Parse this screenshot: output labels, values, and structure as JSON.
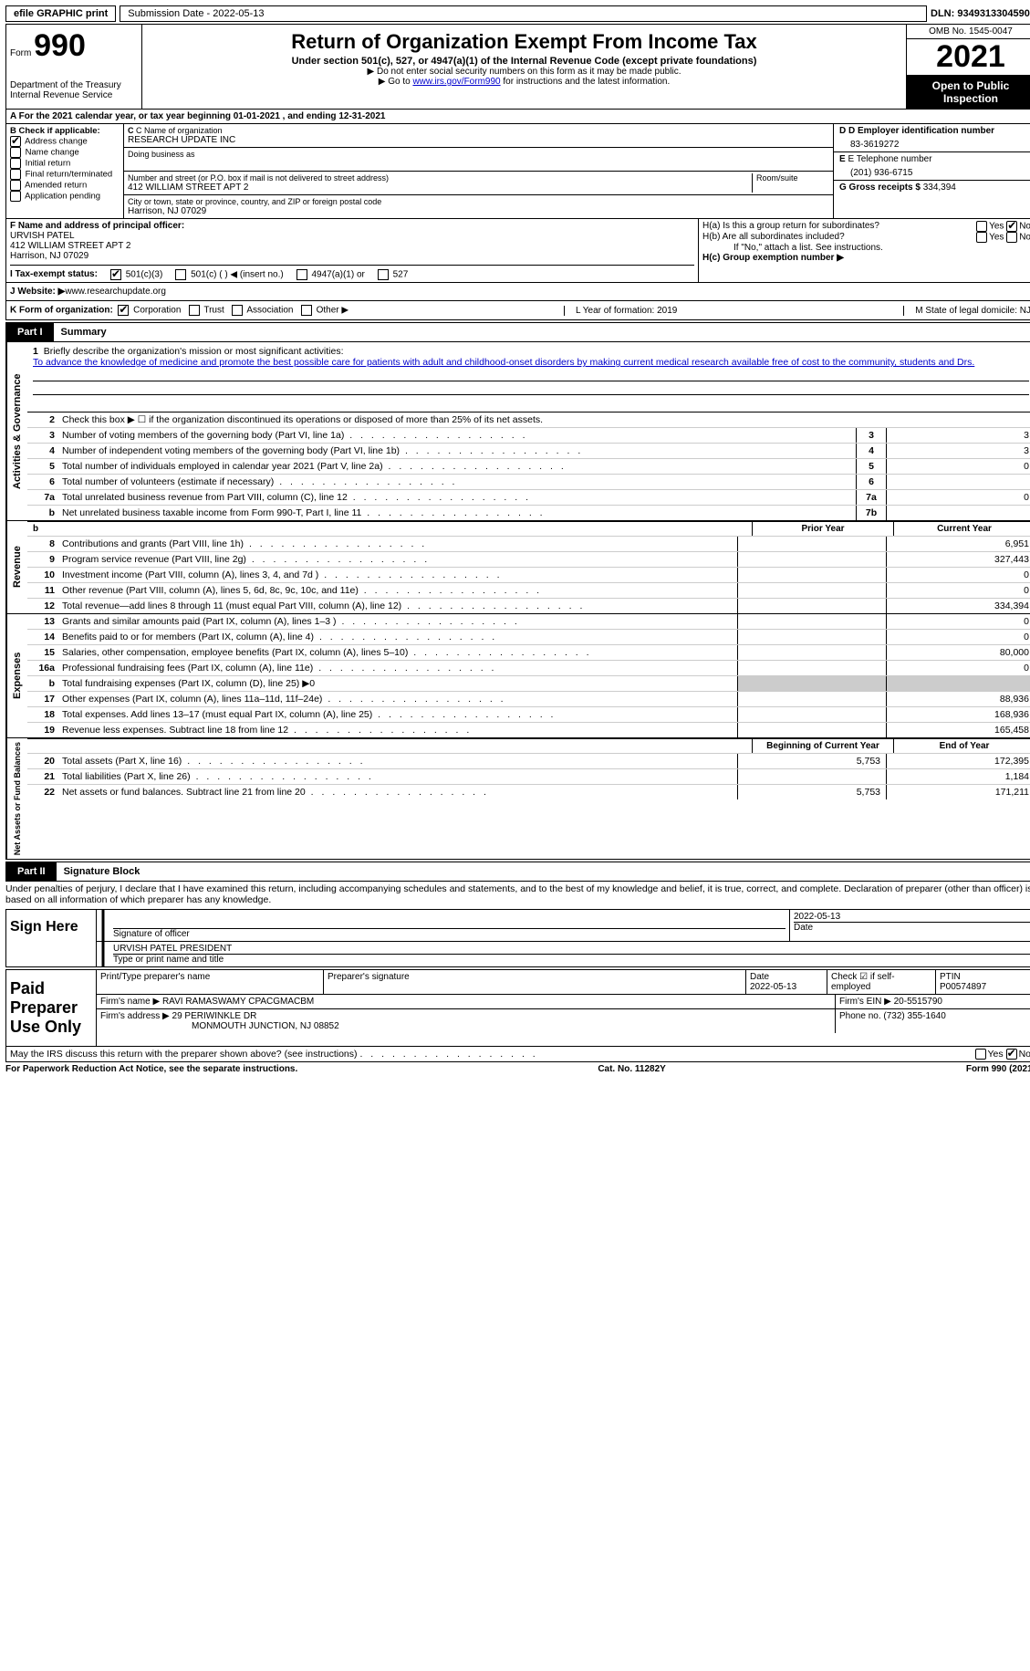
{
  "top": {
    "efile": "efile GRAPHIC print",
    "submission": "Submission Date - 2022-05-13",
    "dln": "DLN: 93493133045902"
  },
  "header": {
    "form": "Form",
    "form_num": "990",
    "dept": "Department of the Treasury Internal Revenue Service",
    "title": "Return of Organization Exempt From Income Tax",
    "sub": "Under section 501(c), 527, or 4947(a)(1) of the Internal Revenue Code (except private foundations)",
    "note1": "▶ Do not enter social security numbers on this form as it may be made public.",
    "note2_pre": "▶ Go to ",
    "note2_link": "www.irs.gov/Form990",
    "note2_post": " for instructions and the latest information.",
    "omb": "OMB No. 1545-0047",
    "year": "2021",
    "inspection": "Open to Public Inspection"
  },
  "rowA": "A For the 2021 calendar year, or tax year beginning 01-01-2021   , and ending 12-31-2021",
  "colB": {
    "label": "B Check if applicable:",
    "opts": [
      "Address change",
      "Name change",
      "Initial return",
      "Final return/terminated",
      "Amended return",
      "Application pending"
    ],
    "checked": [
      true,
      false,
      false,
      false,
      false,
      false
    ]
  },
  "colC": {
    "name_label": "C Name of organization",
    "name": "RESEARCH UPDATE INC",
    "dba_label": "Doing business as",
    "addr_label": "Number and street (or P.O. box if mail is not delivered to street address)",
    "addr": "412 WILLIAM STREET APT 2",
    "room_label": "Room/suite",
    "city_label": "City or town, state or province, country, and ZIP or foreign postal code",
    "city": "Harrison, NJ  07029"
  },
  "colD": {
    "ein_label": "D Employer identification number",
    "ein": "83-3619272",
    "phone_label": "E Telephone number",
    "phone": "(201) 936-6715",
    "gross_label": "G Gross receipts $",
    "gross": "334,394"
  },
  "colF": {
    "label": "F  Name and address of principal officer:",
    "name": "URVISH PATEL",
    "addr1": "412 WILLIAM STREET APT 2",
    "addr2": "Harrison, NJ  07029"
  },
  "colH": {
    "ha": "H(a)  Is this a group return for subordinates?",
    "hb": "H(b)  Are all subordinates included?",
    "hb_note": "If \"No,\" attach a list. See instructions.",
    "hc": "H(c)  Group exemption number ▶"
  },
  "rowI": {
    "label": "I   Tax-exempt status:",
    "opts": [
      "501(c)(3)",
      "501(c) (  ) ◀ (insert no.)",
      "4947(a)(1) or",
      "527"
    ]
  },
  "rowJ": {
    "label": "J   Website: ▶",
    "val": " www.researchupdate.org"
  },
  "rowK": {
    "label": "K Form of organization:",
    "opts": [
      "Corporation",
      "Trust",
      "Association",
      "Other ▶"
    ],
    "l": "L Year of formation: 2019",
    "m": "M State of legal domicile: NJ"
  },
  "part1": {
    "tab": "Part I",
    "title": "Summary"
  },
  "mission": {
    "num": "1",
    "label": "Briefly describe the organization's mission or most significant activities:",
    "text": "To advance the knowledge of medicine and promote the best possible care for patients with adult and childhood-onset disorders by making current medical research available free of cost to the community, students and Drs."
  },
  "lines_gov": [
    {
      "n": "2",
      "d": "Check this box ▶ ☐ if the organization discontinued its operations or disposed of more than 25% of its net assets."
    },
    {
      "n": "3",
      "d": "Number of voting members of the governing body (Part VI, line 1a)",
      "box": "3",
      "v": "3"
    },
    {
      "n": "4",
      "d": "Number of independent voting members of the governing body (Part VI, line 1b)",
      "box": "4",
      "v": "3"
    },
    {
      "n": "5",
      "d": "Total number of individuals employed in calendar year 2021 (Part V, line 2a)",
      "box": "5",
      "v": "0"
    },
    {
      "n": "6",
      "d": "Total number of volunteers (estimate if necessary)",
      "box": "6",
      "v": ""
    },
    {
      "n": "7a",
      "d": "Total unrelated business revenue from Part VIII, column (C), line 12",
      "box": "7a",
      "v": "0"
    },
    {
      "n": "b",
      "d": "Net unrelated business taxable income from Form 990-T, Part I, line 11",
      "box": "7b",
      "v": ""
    }
  ],
  "col_hdr": {
    "prior": "Prior Year",
    "curr": "Current Year"
  },
  "lines_rev": [
    {
      "n": "8",
      "d": "Contributions and grants (Part VIII, line 1h)",
      "p": "",
      "c": "6,951"
    },
    {
      "n": "9",
      "d": "Program service revenue (Part VIII, line 2g)",
      "p": "",
      "c": "327,443"
    },
    {
      "n": "10",
      "d": "Investment income (Part VIII, column (A), lines 3, 4, and 7d )",
      "p": "",
      "c": "0"
    },
    {
      "n": "11",
      "d": "Other revenue (Part VIII, column (A), lines 5, 6d, 8c, 9c, 10c, and 11e)",
      "p": "",
      "c": "0"
    },
    {
      "n": "12",
      "d": "Total revenue—add lines 8 through 11 (must equal Part VIII, column (A), line 12)",
      "p": "",
      "c": "334,394"
    }
  ],
  "lines_exp": [
    {
      "n": "13",
      "d": "Grants and similar amounts paid (Part IX, column (A), lines 1–3 )",
      "p": "",
      "c": "0"
    },
    {
      "n": "14",
      "d": "Benefits paid to or for members (Part IX, column (A), line 4)",
      "p": "",
      "c": "0"
    },
    {
      "n": "15",
      "d": "Salaries, other compensation, employee benefits (Part IX, column (A), lines 5–10)",
      "p": "",
      "c": "80,000"
    },
    {
      "n": "16a",
      "d": "Professional fundraising fees (Part IX, column (A), line 11e)",
      "p": "",
      "c": "0"
    },
    {
      "n": "b",
      "d": "Total fundraising expenses (Part IX, column (D), line 25) ▶0",
      "grey": true
    },
    {
      "n": "17",
      "d": "Other expenses (Part IX, column (A), lines 11a–11d, 11f–24e)",
      "p": "",
      "c": "88,936"
    },
    {
      "n": "18",
      "d": "Total expenses. Add lines 13–17 (must equal Part IX, column (A), line 25)",
      "p": "",
      "c": "168,936"
    },
    {
      "n": "19",
      "d": "Revenue less expenses. Subtract line 18 from line 12",
      "p": "",
      "c": "165,458"
    }
  ],
  "col_hdr2": {
    "prior": "Beginning of Current Year",
    "curr": "End of Year"
  },
  "lines_net": [
    {
      "n": "20",
      "d": "Total assets (Part X, line 16)",
      "p": "5,753",
      "c": "172,395"
    },
    {
      "n": "21",
      "d": "Total liabilities (Part X, line 26)",
      "p": "",
      "c": "1,184"
    },
    {
      "n": "22",
      "d": "Net assets or fund balances. Subtract line 21 from line 20",
      "p": "5,753",
      "c": "171,211"
    }
  ],
  "part2": {
    "tab": "Part II",
    "title": "Signature Block"
  },
  "sig_text": "Under penalties of perjury, I declare that I have examined this return, including accompanying schedules and statements, and to the best of my knowledge and belief, it is true, correct, and complete. Declaration of preparer (other than officer) is based on all information of which preparer has any knowledge.",
  "sign_here": {
    "label": "Sign Here",
    "sig_label": "Signature of officer",
    "date": "2022-05-13",
    "date_label": "Date",
    "name": "URVISH PATEL PRESIDENT",
    "name_label": "Type or print name and title"
  },
  "paid": {
    "label": "Paid Preparer Use Only",
    "r1": {
      "c1_label": "Print/Type preparer's name",
      "c2_label": "Preparer's signature",
      "c3_label": "Date",
      "c3": "2022-05-13",
      "c4_label": "Check ☑ if self-employed",
      "c5_label": "PTIN",
      "c5": "P00574897"
    },
    "r2": {
      "firm_label": "Firm's name    ▶",
      "firm": "RAVI RAMASWAMY CPACGMACBM",
      "ein_label": "Firm's EIN ▶",
      "ein": "20-5515790"
    },
    "r3": {
      "addr_label": "Firm's address ▶",
      "addr1": "29 PERIWINKLE DR",
      "addr2": "MONMOUTH JUNCTION, NJ  08852",
      "phone_label": "Phone no.",
      "phone": "(732) 355-1640"
    }
  },
  "may_discuss": "May the IRS discuss this return with the preparer shown above? (see instructions)",
  "footer": {
    "left": "For Paperwork Reduction Act Notice, see the separate instructions.",
    "center": "Cat. No. 11282Y",
    "right": "Form 990 (2021)"
  },
  "side_labels": {
    "gov": "Activities & Governance",
    "rev": "Revenue",
    "exp": "Expenses",
    "net": "Net Assets or Fund Balances"
  }
}
